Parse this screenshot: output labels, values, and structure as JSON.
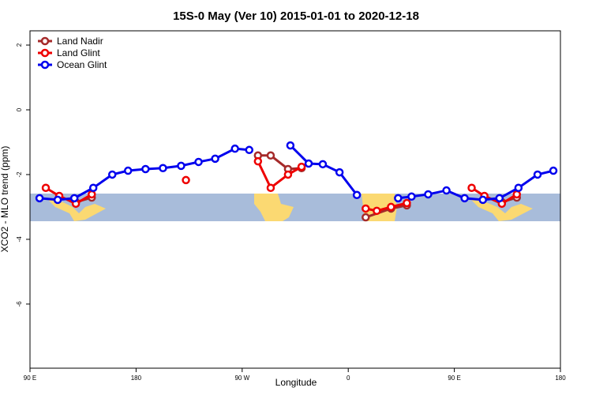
{
  "chart_data": {
    "type": "line",
    "title": "15S-0 May (Ver 10)   2015-01-01 to 2020-12-18",
    "xlabel": "Longitude",
    "ylabel": "XCO2 - MLO trend (ppm)",
    "xlim": [
      90,
      540
    ],
    "xticks": [
      {
        "value": 90,
        "label": "90 E"
      },
      180,
      {
        "value": 270,
        "label": "90 W"
      },
      {
        "value": 360,
        "label": "0"
      },
      {
        "value": 450,
        "label": "90 E"
      },
      {
        "value": 540,
        "label": "180"
      }
    ],
    "ylim": [
      -7.98,
      2.44
    ],
    "yticks": [
      2,
      0,
      -2,
      -4,
      -6
    ],
    "legend": "top-left",
    "series": [
      {
        "name": "Land Nadir",
        "color": "#a52a2a",
        "x": [
          128.9,
          142.4,
          null,
          283.4,
          294.2,
          308.9,
          320.4,
          null,
          374.8,
          396.3,
          409.7,
          null,
          490.3,
          503.0
        ],
        "values": [
          -2.85,
          -2.71,
          null,
          -1.41,
          -1.41,
          -1.83,
          -1.8,
          null,
          -3.32,
          -3.05,
          -2.95,
          null,
          -2.85,
          -2.71
        ]
      },
      {
        "name": "Land Glint",
        "color": "#ee0000",
        "x": [
          103.4,
          114.8,
          128.9,
          142.4,
          null,
          222.3,
          null,
          283.4,
          294.2,
          308.9,
          320.4,
          null,
          374.8,
          384.2,
          396.3,
          409.7,
          null,
          464.7,
          475.5,
          490.3,
          503.0
        ],
        "values": [
          -2.41,
          -2.66,
          -2.9,
          -2.61,
          null,
          -2.17,
          null,
          -1.59,
          -2.41,
          -2.0,
          -1.76,
          null,
          -3.05,
          -3.12,
          -3.0,
          -2.88,
          null,
          -2.41,
          -2.66,
          -2.9,
          -2.61
        ]
      },
      {
        "name": "Ocean Glint",
        "color": "#0000ee",
        "x": [
          98.1,
          113.5,
          127.6,
          143.7,
          159.8,
          173.2,
          188.0,
          202.8,
          218.2,
          233.0,
          247.1,
          263.9,
          276.0,
          null,
          310.9,
          326.4,
          338.4,
          352.6,
          367.3,
          null,
          402.3,
          413.7,
          427.8,
          443.3,
          458.7,
          474.2,
          488.3,
          504.4,
          520.6,
          534.0
        ],
        "values": [
          -2.73,
          -2.78,
          -2.73,
          -2.41,
          -2.0,
          -1.88,
          -1.83,
          -1.8,
          -1.73,
          -1.61,
          -1.51,
          -1.2,
          -1.24,
          null,
          -1.1,
          -1.66,
          -1.68,
          -1.93,
          -2.63,
          null,
          -2.73,
          -2.68,
          -2.61,
          -2.49,
          -2.73,
          -2.78,
          -2.73,
          -2.41,
          -2.0,
          -1.88
        ]
      }
    ]
  }
}
